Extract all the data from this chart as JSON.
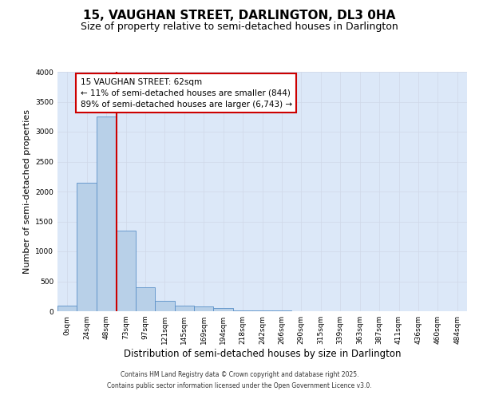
{
  "title_line1": "15, VAUGHAN STREET, DARLINGTON, DL3 0HA",
  "title_line2": "Size of property relative to semi-detached houses in Darlington",
  "xlabel": "Distribution of semi-detached houses by size in Darlington",
  "ylabel": "Number of semi-detached properties",
  "bin_labels": [
    "0sqm",
    "24sqm",
    "48sqm",
    "73sqm",
    "97sqm",
    "121sqm",
    "145sqm",
    "169sqm",
    "194sqm",
    "218sqm",
    "242sqm",
    "266sqm",
    "290sqm",
    "315sqm",
    "339sqm",
    "363sqm",
    "387sqm",
    "411sqm",
    "436sqm",
    "460sqm",
    "484sqm"
  ],
  "bar_heights": [
    100,
    2150,
    3250,
    1350,
    400,
    175,
    100,
    75,
    60,
    20,
    15,
    10,
    5,
    3,
    2,
    1,
    1,
    0,
    0,
    0,
    0
  ],
  "bar_color": "#b8d0e8",
  "bar_edge_color": "#5a90c8",
  "grid_color": "#d0d8e8",
  "background_color": "#dce8f8",
  "vline_x": 2.52,
  "vline_color": "#cc0000",
  "annotation_title": "15 VAUGHAN STREET: 62sqm",
  "annotation_line1": "← 11% of semi-detached houses are smaller (844)",
  "annotation_line2": "89% of semi-detached houses are larger (6,743) →",
  "annotation_box_color": "#cc0000",
  "ylim": [
    0,
    4000
  ],
  "yticks": [
    0,
    500,
    1000,
    1500,
    2000,
    2500,
    3000,
    3500,
    4000
  ],
  "footer_line1": "Contains HM Land Registry data © Crown copyright and database right 2025.",
  "footer_line2": "Contains public sector information licensed under the Open Government Licence v3.0.",
  "title_fontsize": 11,
  "subtitle_fontsize": 9,
  "tick_fontsize": 6.5,
  "ylabel_fontsize": 8,
  "xlabel_fontsize": 8.5,
  "annotation_fontsize": 7.5
}
